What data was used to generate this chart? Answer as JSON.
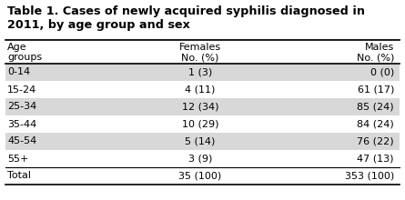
{
  "title_line1": "Table 1. Cases of newly acquired syphilis diagnosed in",
  "title_line2": "2011, by age group and sex",
  "age_groups": [
    "0-14",
    "15-24",
    "25-34",
    "35-44",
    "45-54",
    "55+",
    "Total"
  ],
  "females": [
    "1 (3)",
    "4 (11)",
    "12 (34)",
    "10 (29)",
    "5 (14)",
    "3 (9)",
    "35 (100)"
  ],
  "males": [
    "0 (0)",
    "61 (17)",
    "85 (24)",
    "84 (24)",
    "76 (22)",
    "47 (13)",
    "353 (100)"
  ],
  "shaded_rows": [
    0,
    2,
    4
  ],
  "row_bg_shaded": "#d8d8d8",
  "row_bg_white": "#ffffff",
  "title_fontsize": 9.2,
  "header_fontsize": 8.0,
  "data_fontsize": 8.0,
  "bg_color": "#ffffff"
}
